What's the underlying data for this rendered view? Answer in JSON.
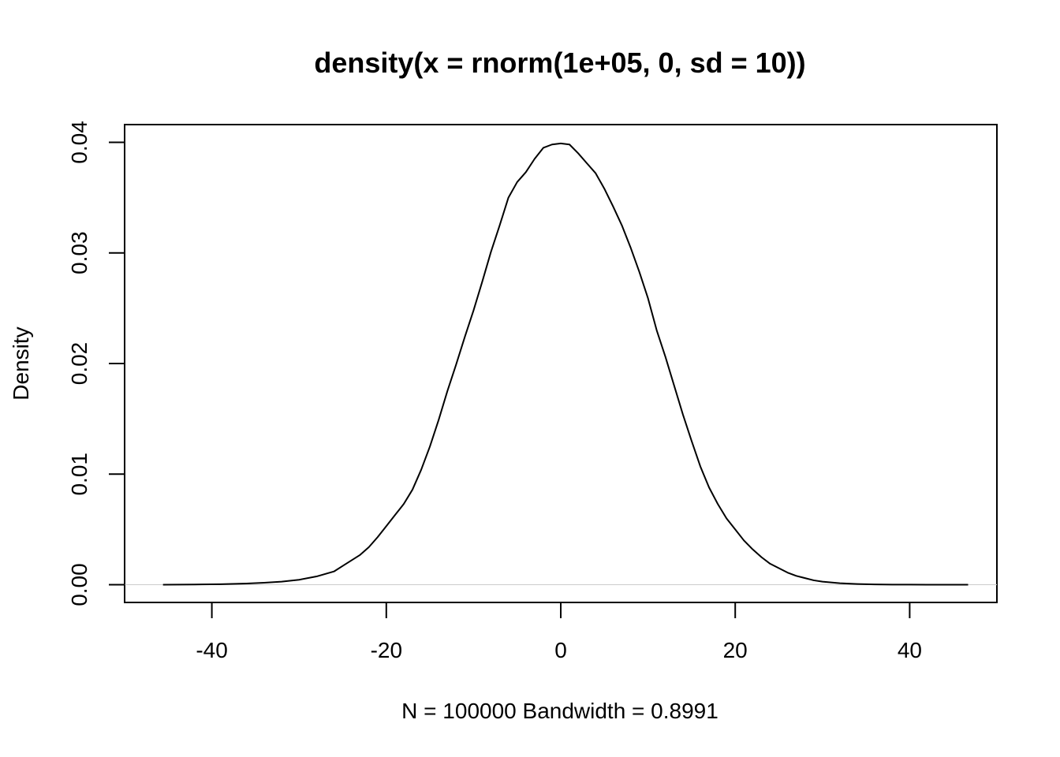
{
  "chart_data": {
    "type": "line",
    "title": "density(x = rnorm(1e+05, 0, sd = 10))",
    "xlabel": "N = 100000   Bandwidth = 0.8991",
    "ylabel": "Density",
    "xlim": [
      -50,
      50
    ],
    "ylim": [
      -0.0016,
      0.0416
    ],
    "x_ticks": [
      -40,
      -20,
      0,
      20,
      40
    ],
    "x_tick_labels": [
      "-40",
      "-20",
      "0",
      "20",
      "40"
    ],
    "y_ticks": [
      0.0,
      0.01,
      0.02,
      0.03,
      0.04
    ],
    "y_tick_labels": [
      "0.00",
      "0.01",
      "0.02",
      "0.03",
      "0.04"
    ],
    "baseline_y": 0,
    "grid": false,
    "series": [
      {
        "x": [
          -45.6,
          -42,
          -39,
          -36,
          -34,
          -32,
          -30,
          -28,
          -26,
          -25,
          -24,
          -23,
          -22,
          -21,
          -20,
          -19,
          -18,
          -17,
          -16,
          -15,
          -14,
          -13,
          -12,
          -11,
          -10,
          -9,
          -8,
          -7,
          -6,
          -5,
          -4,
          -3,
          -2,
          -1,
          0,
          1,
          2,
          3,
          4,
          5,
          6,
          7,
          8,
          9,
          10,
          11,
          12,
          13,
          14,
          15,
          16,
          17,
          18,
          19,
          20,
          21,
          22,
          23,
          24,
          25,
          26,
          27,
          28,
          29,
          30,
          32,
          34,
          36,
          38,
          40,
          42,
          44,
          46.7
        ],
        "y": [
          0.0,
          2e-05,
          5e-05,
          0.00011,
          0.00018,
          0.00028,
          0.00045,
          0.00075,
          0.0012,
          0.0017,
          0.0022,
          0.0027,
          0.0034,
          0.0043,
          0.0053,
          0.0063,
          0.0073,
          0.0086,
          0.0104,
          0.0125,
          0.0149,
          0.0175,
          0.0199,
          0.0224,
          0.0248,
          0.0274,
          0.0301,
          0.0325,
          0.035,
          0.0364,
          0.0373,
          0.0385,
          0.0395,
          0.0398,
          0.0399,
          0.0398,
          0.039,
          0.0381,
          0.0372,
          0.0358,
          0.0342,
          0.0325,
          0.0305,
          0.0283,
          0.0259,
          0.023,
          0.0206,
          0.018,
          0.0154,
          0.013,
          0.0107,
          0.0088,
          0.0073,
          0.006,
          0.005,
          0.004,
          0.0032,
          0.0025,
          0.0019,
          0.0015,
          0.0011,
          0.0008,
          0.0006,
          0.0004,
          0.00028,
          0.00014,
          7e-05,
          3e-05,
          1.5e-05,
          1e-05,
          5e-06,
          3e-06,
          0.0
        ]
      }
    ]
  }
}
